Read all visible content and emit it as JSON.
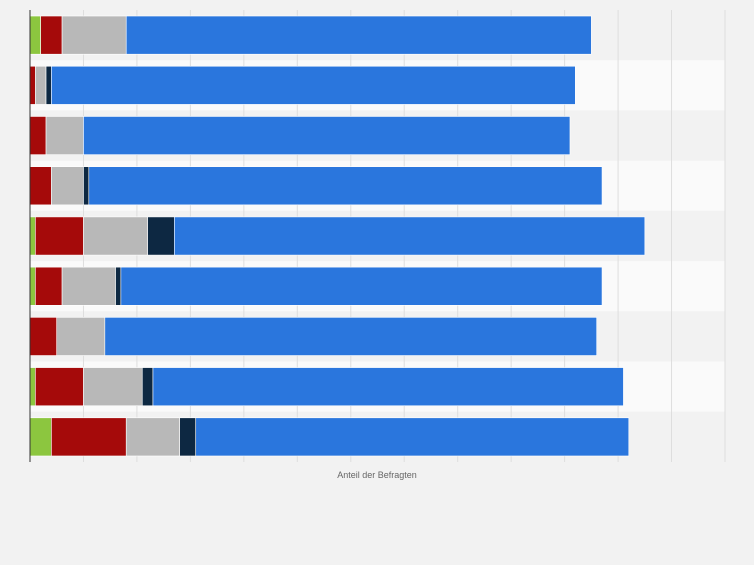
{
  "chart_data": {
    "type": "bar",
    "orientation": "horizontal",
    "stacked": true,
    "title": "",
    "xlabel": "Anteil der Befragten",
    "ylabel": "",
    "xlim": [
      0,
      130
    ],
    "grid": true,
    "legend": "none",
    "categories": [
      "",
      "",
      "",
      "",
      "",
      "",
      "",
      "",
      ""
    ],
    "series": [
      {
        "color": "#8cc63f",
        "values": [
          2.0,
          0.0,
          0.0,
          0.0,
          1.0,
          1.0,
          0.0,
          1.0,
          4.0
        ]
      },
      {
        "color": "#a50a0a",
        "values": [
          4.0,
          1.0,
          3.0,
          4.0,
          9.0,
          5.0,
          5.0,
          9.0,
          14.0
        ]
      },
      {
        "color": "#b8b8b8",
        "values": [
          12.0,
          2.0,
          7.0,
          6.0,
          12.0,
          10.0,
          9.0,
          11.0,
          10.0
        ]
      },
      {
        "color": "#0d2842",
        "values": [
          0.0,
          1.0,
          0.0,
          1.0,
          5.0,
          1.0,
          0.0,
          2.0,
          3.0
        ]
      },
      {
        "color": "#2a76dd",
        "values": [
          87.0,
          98.0,
          91.0,
          96.0,
          88.0,
          90.0,
          92.0,
          88.0,
          81.0
        ]
      }
    ]
  }
}
